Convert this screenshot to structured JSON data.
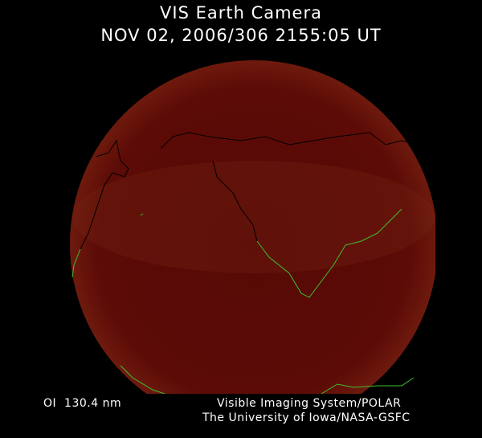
{
  "header": {
    "title": "VIS Earth Camera",
    "timestamp": "NOV 02, 2006/306 2155:05 UT"
  },
  "footer": {
    "wavelength": "OI  130.4 nm",
    "instrument": "Visible Imaging System/POLAR",
    "institution": "The University of Iowa/NASA-GSFC"
  },
  "colors": {
    "background": "#000000",
    "earth_disc": "#5a0a06",
    "coastline_night": "#000000",
    "coastline_day": "#3fbf2f",
    "text": "#ffffff"
  }
}
